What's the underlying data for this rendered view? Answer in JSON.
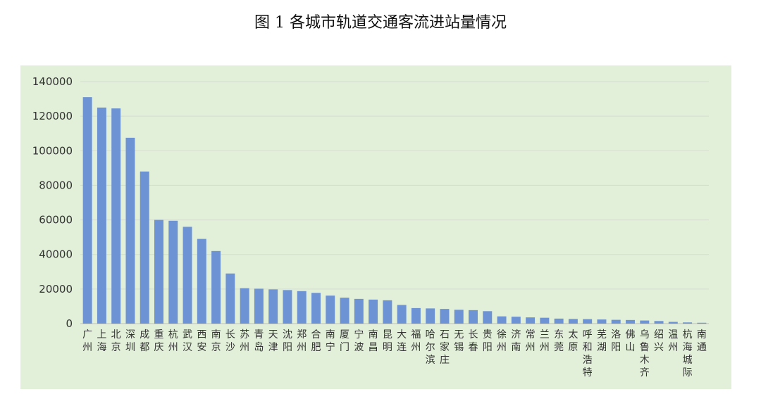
{
  "title": "图 1    各城市轨道交通客流进站量情况",
  "chart_data": {
    "type": "bar",
    "ylim": [
      0,
      140000
    ],
    "yticks": [
      0,
      20000,
      40000,
      60000,
      80000,
      100000,
      120000,
      140000
    ],
    "grid": true,
    "bar_color": "#6e93d4",
    "categories": [
      "广州",
      "上海",
      "北京",
      "深圳",
      "成都",
      "重庆",
      "杭州",
      "武汉",
      "西安",
      "南京",
      "长沙",
      "苏州",
      "青岛",
      "天津",
      "沈阳",
      "郑州",
      "合肥",
      "南宁",
      "厦门",
      "宁波",
      "南昌",
      "昆明",
      "大连",
      "福州",
      "哈尔滨",
      "石家庄",
      "无锡",
      "长春",
      "贵阳",
      "徐州",
      "济南",
      "常州",
      "兰州",
      "东莞",
      "太原",
      "呼和浩特",
      "芜湖",
      "洛阳",
      "佛山",
      "乌鲁木齐",
      "绍兴",
      "温州",
      "杭海城际",
      "南通"
    ],
    "values": [
      131000,
      125000,
      124500,
      107500,
      88000,
      60000,
      59500,
      56000,
      49000,
      42000,
      29000,
      20500,
      20200,
      19800,
      19400,
      18800,
      17800,
      16200,
      15000,
      14300,
      13900,
      13500,
      10800,
      9000,
      8800,
      8500,
      8000,
      7800,
      7200,
      4200,
      4000,
      3600,
      3400,
      2900,
      2700,
      2600,
      2400,
      2200,
      2100,
      1800,
      1500,
      1000,
      700,
      500
    ]
  }
}
